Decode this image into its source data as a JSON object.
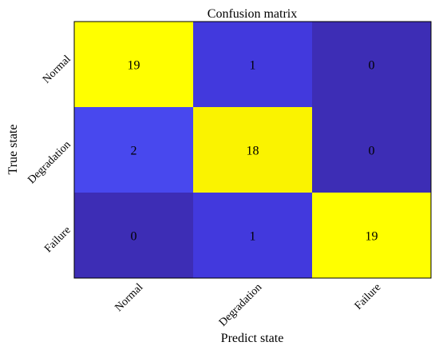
{
  "chart_data": {
    "type": "heatmap",
    "title": "Confusion matrix",
    "xlabel": "Predict state",
    "ylabel": "True state",
    "x_categories": [
      "Normal",
      "Degradation",
      "Failure"
    ],
    "y_categories": [
      "Normal",
      "Degradation",
      "Failure"
    ],
    "values": [
      [
        19,
        1,
        0
      ],
      [
        2,
        18,
        0
      ],
      [
        0,
        1,
        19
      ]
    ],
    "colormap": "parula",
    "colors": {
      "low": "#3d2db5",
      "mid_low": "#4438dc",
      "mid_low2": "#4848f0",
      "high": "#f6e900",
      "max": "#ffff00"
    }
  }
}
